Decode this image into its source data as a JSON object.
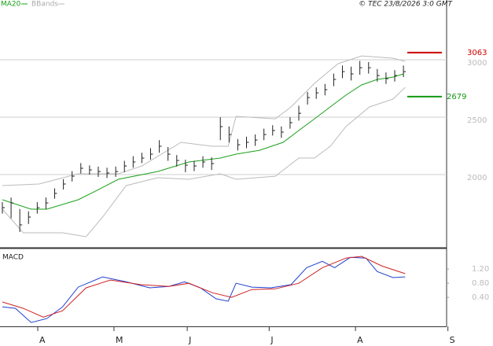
{
  "chart_data": [
    {
      "type": "ohlc",
      "legend": [
        {
          "name": "MA20",
          "color": "#1aa01a"
        },
        {
          "name": "BBands",
          "color": "#bbbbbb"
        }
      ],
      "copyright": "© TEC 23/8/2026 3:0 GMT",
      "high": [
        1760,
        1800,
        1700,
        1680,
        1760,
        1800,
        1880,
        1960,
        2030,
        2100,
        2080,
        2070,
        2060,
        2070,
        2120,
        2160,
        2190,
        2230,
        2300,
        2240,
        2170,
        2130,
        2120,
        2160,
        2150,
        2500,
        2420,
        2310,
        2330,
        2350,
        2400,
        2430,
        2420,
        2500,
        2600,
        2720,
        2760,
        2790,
        2880,
        2950,
        2940,
        2990,
        2980,
        2920,
        2890,
        2910,
        2950
      ],
      "low": [
        1660,
        1620,
        1500,
        1570,
        1660,
        1700,
        1790,
        1870,
        1940,
        2010,
        2000,
        1980,
        1970,
        1980,
        2020,
        2060,
        2100,
        2130,
        2190,
        2120,
        2070,
        2020,
        2030,
        2060,
        2040,
        2300,
        2280,
        2210,
        2230,
        2250,
        2300,
        2340,
        2320,
        2400,
        2470,
        2610,
        2660,
        2690,
        2770,
        2840,
        2820,
        2870,
        2880,
        2810,
        2790,
        2810,
        2850
      ],
      "close": [
        1712,
        1753,
        1562,
        1630,
        1712,
        1753,
        1836,
        1918,
        1986,
        2055,
        2041,
        2027,
        2014,
        2027,
        2075,
        2110,
        2144,
        2178,
        2247,
        2178,
        2123,
        2082,
        2075,
        2110,
        2096,
        2418,
        2349,
        2260,
        2281,
        2301,
        2349,
        2384,
        2370,
        2452,
        2534,
        2671,
        2712,
        2740,
        2829,
        2897,
        2877,
        2931,
        2931,
        2863,
        2836,
        2863,
        2897
      ],
      "bar_color": "#222222",
      "series": [
        {
          "name": "MA20",
          "color": "#1aa01a",
          "x": [
            0,
            3.3,
            5.1,
            8.7,
            10.5,
            13.3,
            17.8,
            21.4,
            25.0,
            26.8,
            29.5,
            32.2,
            34.0,
            35.8,
            37.6,
            39.4,
            41.2,
            43.0,
            44.8,
            46.0
          ],
          "values": [
            1781,
            1699,
            1699,
            1781,
            1849,
            1959,
            2027,
            2110,
            2144,
            2178,
            2212,
            2281,
            2384,
            2486,
            2589,
            2692,
            2781,
            2829,
            2849,
            2877
          ]
        },
        {
          "name": "BBands",
          "color": "#bbbbbb",
          "x": [
            0,
            4.2,
            8.7,
            13.3,
            16.0,
            20.5,
            24.1,
            25.9,
            26.8,
            31.3,
            33.1,
            35.8,
            38.5,
            41.2,
            44.8,
            46.2
          ],
          "values": [
            1904,
            1918,
            2007,
            2007,
            2075,
            2281,
            2247,
            2247,
            2507,
            2486,
            2589,
            2795,
            2966,
            3034,
            3014,
            2986
          ]
        },
        {
          "name": "BBands",
          "color": "#bbbbbb",
          "x": [
            0,
            2.4,
            6.9,
            9.6,
            11.5,
            14.2,
            17.8,
            21.4,
            25.0,
            26.8,
            31.3,
            34.0,
            35.8,
            37.6,
            39.4,
            42.1,
            44.8,
            46.2
          ],
          "values": [
            1699,
            1493,
            1493,
            1459,
            1630,
            1904,
            1973,
            1959,
            2007,
            1959,
            1986,
            2144,
            2144,
            2247,
            2418,
            2589,
            2658,
            2760
          ]
        }
      ],
      "levels": [
        {
          "value": 3063,
          "color": "#cc0000"
        },
        {
          "value": 2679,
          "color": "#119911"
        }
      ],
      "xlim": [
        -0.27,
        50.95
      ],
      "ylim": [
        1363,
        3521
      ],
      "yticks": [
        2000,
        2500,
        3000
      ],
      "grid": true
    },
    {
      "type": "line",
      "title": "MACD",
      "series": [
        {
          "color": "#1f3fd0",
          "x": [
            0,
            1.5,
            3.3,
            5.1,
            6.9,
            8.7,
            11.5,
            14.2,
            16.9,
            19.1,
            20.9,
            22.7,
            24.5,
            25.9,
            26.8,
            28.6,
            30.8,
            33.1,
            34.9,
            36.7,
            38.1,
            39.9,
            41.7,
            43.0,
            44.8,
            46.2
          ],
          "values": [
            0.13,
            0.09,
            -0.31,
            -0.2,
            0.13,
            0.69,
            0.98,
            0.84,
            0.67,
            0.71,
            0.84,
            0.67,
            0.36,
            0.29,
            0.8,
            0.69,
            0.67,
            0.76,
            1.24,
            1.42,
            1.24,
            1.53,
            1.51,
            1.13,
            0.96,
            0.98
          ]
        },
        {
          "color": "#d02020",
          "x": [
            0,
            2.4,
            4.7,
            6.9,
            9.6,
            12.4,
            15.9,
            19.1,
            21.4,
            24.1,
            26.3,
            28.6,
            31.3,
            34.0,
            36.7,
            39.4,
            41.2,
            43.5,
            46.2
          ],
          "values": [
            0.27,
            0.09,
            -0.16,
            0.02,
            0.67,
            0.89,
            0.76,
            0.71,
            0.8,
            0.53,
            0.4,
            0.62,
            0.64,
            0.8,
            1.24,
            1.51,
            1.56,
            1.29,
            1.07
          ]
        }
      ],
      "xlim": [
        -0.27,
        50.95
      ],
      "ylim": [
        -0.42,
        1.76
      ],
      "yticks": [
        {
          "value": 0.4,
          "label": "0.40"
        },
        {
          "value": 0.8,
          "label": "0.80"
        },
        {
          "value": 1.2,
          "label": "1.20"
        }
      ],
      "xticks": [
        {
          "value": 4.06,
          "label": "A"
        },
        {
          "value": 12.8,
          "label": "M"
        },
        {
          "value": 21.2,
          "label": "J"
        },
        {
          "value": 30.6,
          "label": "J"
        },
        {
          "value": 40.5,
          "label": "A"
        },
        {
          "value": 51.1,
          "label": "S"
        }
      ]
    }
  ]
}
